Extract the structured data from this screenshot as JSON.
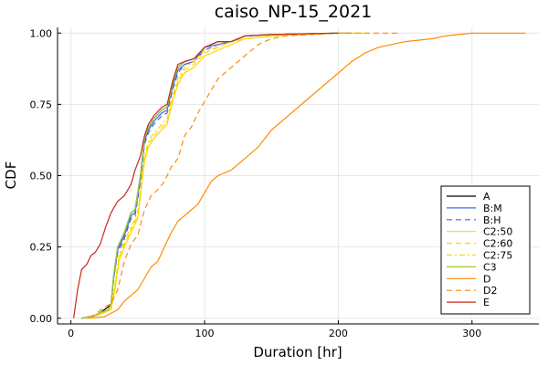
{
  "chart_data": {
    "type": "line",
    "title": "caiso_NP-15_2021",
    "xlabel": "Duration [hr]",
    "ylabel": "CDF",
    "xlim": [
      -10,
      350
    ],
    "ylim": [
      -0.02,
      1.02
    ],
    "xticks": [
      0,
      100,
      200,
      300
    ],
    "xtick_labels": [
      "0",
      "100",
      "200",
      "300"
    ],
    "yticks": [
      0,
      0.25,
      0.5,
      0.75,
      1
    ],
    "ytick_labels": [
      "0.00",
      "0.25",
      "0.50",
      "0.75",
      "1.00"
    ],
    "grid": true,
    "legend_position": "bottom-right",
    "series": [
      {
        "name": "A",
        "color": "#000000",
        "dash": "solid",
        "x": [
          8,
          18,
          22,
          28,
          30,
          32,
          35,
          40,
          45,
          48,
          52,
          55,
          58,
          62,
          68,
          72,
          76,
          80,
          85,
          92,
          100,
          110,
          120,
          130,
          150,
          200,
          210
        ],
        "y": [
          0,
          0.01,
          0.02,
          0.04,
          0.05,
          0.15,
          0.25,
          0.3,
          0.37,
          0.38,
          0.5,
          0.63,
          0.67,
          0.7,
          0.73,
          0.74,
          0.82,
          0.88,
          0.9,
          0.91,
          0.95,
          0.97,
          0.97,
          0.99,
          0.995,
          1.0,
          1.0
        ]
      },
      {
        "name": "B:M",
        "color": "#4169e1",
        "dash": "solid",
        "x": [
          8,
          18,
          22,
          28,
          30,
          32,
          35,
          40,
          45,
          48,
          52,
          55,
          58,
          62,
          68,
          72,
          76,
          80,
          85,
          92,
          100,
          110,
          120,
          130,
          150,
          200,
          210
        ],
        "y": [
          0,
          0.01,
          0.02,
          0.03,
          0.05,
          0.14,
          0.24,
          0.29,
          0.36,
          0.37,
          0.49,
          0.62,
          0.66,
          0.69,
          0.72,
          0.73,
          0.81,
          0.87,
          0.89,
          0.9,
          0.95,
          0.96,
          0.97,
          0.99,
          0.995,
          1.0,
          1.0
        ]
      },
      {
        "name": "B:H",
        "color": "#4169e1",
        "dash": "dashed",
        "x": [
          8,
          18,
          22,
          28,
          30,
          32,
          35,
          40,
          45,
          48,
          52,
          55,
          58,
          62,
          68,
          72,
          76,
          80,
          85,
          92,
          100,
          110,
          120,
          130,
          150,
          200,
          210
        ],
        "y": [
          0,
          0.01,
          0.02,
          0.03,
          0.05,
          0.14,
          0.23,
          0.28,
          0.35,
          0.36,
          0.48,
          0.61,
          0.65,
          0.68,
          0.71,
          0.72,
          0.8,
          0.86,
          0.89,
          0.9,
          0.94,
          0.96,
          0.97,
          0.99,
          0.995,
          1.0,
          1.0
        ]
      },
      {
        "name": "C2:50",
        "color": "#ffd700",
        "dash": "solid",
        "x": [
          10,
          20,
          25,
          30,
          33,
          36,
          40,
          45,
          50,
          55,
          58,
          62,
          68,
          72,
          76,
          80,
          85,
          92,
          100,
          110,
          120,
          130,
          150,
          200,
          220
        ],
        "y": [
          0,
          0.01,
          0.02,
          0.03,
          0.1,
          0.2,
          0.25,
          0.3,
          0.35,
          0.55,
          0.6,
          0.63,
          0.66,
          0.68,
          0.76,
          0.82,
          0.86,
          0.88,
          0.92,
          0.94,
          0.96,
          0.98,
          0.99,
          1.0,
          1.0
        ]
      },
      {
        "name": "C2:60",
        "color": "#ffd700",
        "dash": "dashed",
        "x": [
          10,
          20,
          25,
          30,
          33,
          36,
          40,
          45,
          50,
          55,
          58,
          62,
          68,
          72,
          76,
          80,
          85,
          92,
          100,
          110,
          120,
          130,
          150,
          200,
          220
        ],
        "y": [
          0,
          0.01,
          0.02,
          0.03,
          0.11,
          0.21,
          0.26,
          0.31,
          0.36,
          0.56,
          0.61,
          0.64,
          0.67,
          0.69,
          0.77,
          0.83,
          0.87,
          0.89,
          0.93,
          0.95,
          0.97,
          0.98,
          0.99,
          1.0,
          1.0
        ]
      },
      {
        "name": "C2:75",
        "color": "#ffd700",
        "dash": "dashdot",
        "x": [
          10,
          20,
          25,
          30,
          33,
          36,
          40,
          45,
          50,
          55,
          58,
          62,
          68,
          72,
          76,
          80,
          85,
          92,
          100,
          110,
          120,
          130,
          150,
          200,
          220
        ],
        "y": [
          0,
          0.01,
          0.02,
          0.04,
          0.12,
          0.22,
          0.27,
          0.32,
          0.37,
          0.57,
          0.62,
          0.65,
          0.68,
          0.7,
          0.78,
          0.84,
          0.88,
          0.9,
          0.94,
          0.95,
          0.97,
          0.98,
          0.99,
          1.0,
          1.0
        ]
      },
      {
        "name": "C3",
        "color": "#9acd32",
        "dash": "solid",
        "x": [
          8,
          18,
          22,
          28,
          30,
          32,
          35,
          40,
          45,
          48,
          52,
          55,
          58,
          62,
          68,
          72,
          76,
          80,
          85,
          92,
          100,
          110,
          120,
          130,
          150,
          200,
          210
        ],
        "y": [
          0,
          0.01,
          0.02,
          0.03,
          0.05,
          0.15,
          0.25,
          0.3,
          0.37,
          0.38,
          0.5,
          0.63,
          0.67,
          0.7,
          0.73,
          0.74,
          0.82,
          0.88,
          0.9,
          0.91,
          0.95,
          0.97,
          0.97,
          0.99,
          0.995,
          1.0,
          1.0
        ]
      },
      {
        "name": "D",
        "color": "#ff8c00",
        "dash": "solid",
        "x": [
          12,
          25,
          35,
          40,
          45,
          50,
          55,
          60,
          65,
          70,
          75,
          80,
          85,
          90,
          95,
          100,
          105,
          110,
          120,
          130,
          140,
          150,
          160,
          170,
          180,
          190,
          200,
          210,
          220,
          230,
          250,
          270,
          280,
          300,
          340
        ],
        "y": [
          0,
          0.005,
          0.03,
          0.06,
          0.08,
          0.1,
          0.14,
          0.18,
          0.2,
          0.25,
          0.3,
          0.34,
          0.36,
          0.38,
          0.4,
          0.44,
          0.48,
          0.5,
          0.52,
          0.56,
          0.6,
          0.66,
          0.7,
          0.74,
          0.78,
          0.82,
          0.86,
          0.9,
          0.93,
          0.95,
          0.97,
          0.98,
          0.99,
          1.0,
          1.0
        ]
      },
      {
        "name": "D2",
        "color": "#ff8c00",
        "dash": "dashed",
        "x": [
          15,
          20,
          25,
          30,
          35,
          40,
          45,
          50,
          55,
          60,
          65,
          70,
          75,
          80,
          85,
          90,
          95,
          100,
          105,
          110,
          120,
          130,
          140,
          150,
          160,
          180,
          200,
          220,
          245
        ],
        "y": [
          0,
          0.02,
          0.04,
          0.05,
          0.1,
          0.2,
          0.26,
          0.29,
          0.38,
          0.43,
          0.45,
          0.48,
          0.53,
          0.56,
          0.64,
          0.67,
          0.72,
          0.76,
          0.8,
          0.84,
          0.88,
          0.92,
          0.96,
          0.98,
          0.99,
          0.995,
          1.0,
          1.0,
          1.0
        ]
      },
      {
        "name": "E",
        "color": "#c8281e",
        "dash": "solid",
        "x": [
          2,
          5,
          8,
          12,
          15,
          18,
          22,
          26,
          30,
          35,
          40,
          45,
          48,
          52,
          55,
          58,
          62,
          68,
          72,
          76,
          80,
          85,
          92,
          100,
          110,
          120,
          130,
          150,
          200
        ],
        "y": [
          0,
          0.1,
          0.17,
          0.19,
          0.22,
          0.23,
          0.26,
          0.32,
          0.37,
          0.41,
          0.43,
          0.47,
          0.52,
          0.57,
          0.64,
          0.68,
          0.71,
          0.74,
          0.75,
          0.83,
          0.89,
          0.9,
          0.91,
          0.95,
          0.97,
          0.97,
          0.99,
          0.995,
          1.0
        ]
      }
    ]
  }
}
